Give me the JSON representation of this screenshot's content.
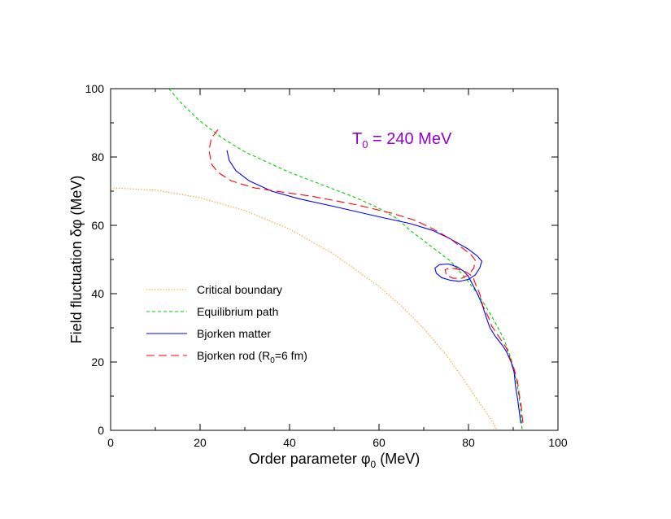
{
  "chart_data": {
    "type": "line",
    "xlabel": {
      "main": "Order parameter φ",
      "sub": "0",
      "tail": " (MeV)"
    },
    "ylabel": "Field fluctuation δφ (MeV)",
    "xlim": [
      0,
      100
    ],
    "ylim": [
      0,
      100
    ],
    "x_ticks": [
      "0",
      "20",
      "40",
      "60",
      "80",
      "100"
    ],
    "y_ticks": [
      "0",
      "20",
      "40",
      "60",
      "80",
      "100"
    ],
    "grid": false,
    "legend_position": "lower-left",
    "annotation": {
      "main": "T",
      "sub": "0",
      "tail": " = 240 MeV",
      "color": "#9400d3"
    },
    "series": [
      {
        "name": "Critical boundary",
        "style": "dotted",
        "color": "#ff8c00",
        "points": [
          [
            0,
            71
          ],
          [
            10,
            70.3
          ],
          [
            20,
            68.1
          ],
          [
            30,
            64.3
          ],
          [
            40,
            58.9
          ],
          [
            50,
            51.5
          ],
          [
            60,
            42.1
          ],
          [
            65,
            36.4
          ],
          [
            70,
            29.8
          ],
          [
            75,
            22.1
          ],
          [
            78,
            16.6
          ],
          [
            80,
            12.8
          ],
          [
            82,
            8.9
          ],
          [
            84,
            5.2
          ],
          [
            85.5,
            2.2
          ],
          [
            86.3,
            0
          ]
        ]
      },
      {
        "name": "Equilibrium path",
        "style": "dashed",
        "color": "#00cc00",
        "points": [
          [
            13,
            100
          ],
          [
            16,
            95.5
          ],
          [
            20,
            90.5
          ],
          [
            25,
            85.5
          ],
          [
            30,
            81.5
          ],
          [
            35,
            78.5
          ],
          [
            40,
            75.5
          ],
          [
            45,
            73
          ],
          [
            50,
            70.5
          ],
          [
            55,
            68
          ],
          [
            60,
            65
          ],
          [
            64,
            62
          ],
          [
            67,
            58.5
          ],
          [
            70,
            55.5
          ],
          [
            73,
            52.5
          ],
          [
            76,
            49.5
          ],
          [
            78,
            46.5
          ],
          [
            80,
            43.5
          ],
          [
            82,
            40
          ],
          [
            84,
            36
          ],
          [
            86,
            31.5
          ],
          [
            88,
            26.5
          ],
          [
            89.5,
            21
          ],
          [
            90.8,
            14
          ],
          [
            91.6,
            7
          ],
          [
            92,
            0
          ]
        ]
      },
      {
        "name": "Bjorken matter",
        "style": "solid",
        "color": "#0000ff",
        "points": [
          [
            26,
            82
          ],
          [
            26.5,
            79
          ],
          [
            28,
            76
          ],
          [
            31,
            73
          ],
          [
            36,
            70
          ],
          [
            42,
            67.8
          ],
          [
            50,
            65.5
          ],
          [
            60,
            62.5
          ],
          [
            67,
            60.5
          ],
          [
            72,
            58.5
          ],
          [
            76,
            56
          ],
          [
            80,
            53
          ],
          [
            82,
            51
          ],
          [
            83,
            49.5
          ],
          [
            82.5,
            47.5
          ],
          [
            81.5,
            45.5
          ],
          [
            80,
            44.2
          ],
          [
            78,
            43.6
          ],
          [
            76,
            43.9
          ],
          [
            74,
            44.7
          ],
          [
            72.8,
            46
          ],
          [
            72.5,
            47.5
          ],
          [
            73.5,
            48.5
          ],
          [
            75.5,
            48.7
          ],
          [
            77.5,
            47.8
          ],
          [
            79,
            46.5
          ],
          [
            80,
            45
          ],
          [
            81,
            42.5
          ],
          [
            82,
            40
          ],
          [
            83,
            37
          ],
          [
            84,
            33
          ],
          [
            84.8,
            30
          ],
          [
            86,
            27.5
          ],
          [
            87.5,
            25
          ],
          [
            88.5,
            23
          ],
          [
            89.5,
            20
          ],
          [
            90.2,
            17
          ],
          [
            90.5,
            13
          ],
          [
            91,
            9
          ],
          [
            91.4,
            5
          ],
          [
            91.7,
            2
          ]
        ]
      },
      {
        "name": "Bjorken rod (R0=6 fm)",
        "name_parts": {
          "main": "Bjorken rod (R",
          "sub": "0",
          "tail": "=6 fm)"
        },
        "style": "longdash",
        "color": "#ff0000",
        "points": [
          [
            24,
            88
          ],
          [
            22.5,
            85.5
          ],
          [
            22,
            82
          ],
          [
            22.5,
            78
          ],
          [
            24,
            75.5
          ],
          [
            27,
            73
          ],
          [
            32,
            71
          ],
          [
            37,
            70
          ],
          [
            45,
            68.5
          ],
          [
            55,
            66
          ],
          [
            63,
            63.5
          ],
          [
            68,
            61.5
          ],
          [
            72,
            59
          ],
          [
            76,
            56
          ],
          [
            79,
            53
          ],
          [
            80.5,
            51.5
          ],
          [
            81.5,
            49.8
          ],
          [
            81.2,
            47.5
          ],
          [
            80,
            45.5
          ],
          [
            78.5,
            44.5
          ],
          [
            76.5,
            44.5
          ],
          [
            75,
            45.5
          ],
          [
            74.8,
            47
          ],
          [
            75.8,
            47.6
          ],
          [
            77.5,
            47.2
          ],
          [
            79.5,
            46.3
          ],
          [
            81,
            45
          ],
          [
            81.5,
            43
          ],
          [
            82.5,
            40
          ],
          [
            83.2,
            36.5
          ],
          [
            84.5,
            33
          ],
          [
            85.2,
            30.5
          ],
          [
            86.5,
            28
          ],
          [
            87.5,
            26
          ],
          [
            88.5,
            24
          ],
          [
            89.3,
            21
          ],
          [
            90.2,
            18
          ],
          [
            91,
            14
          ],
          [
            91.4,
            10
          ],
          [
            91.8,
            7
          ],
          [
            92,
            4
          ],
          [
            92.2,
            2
          ]
        ]
      }
    ]
  }
}
